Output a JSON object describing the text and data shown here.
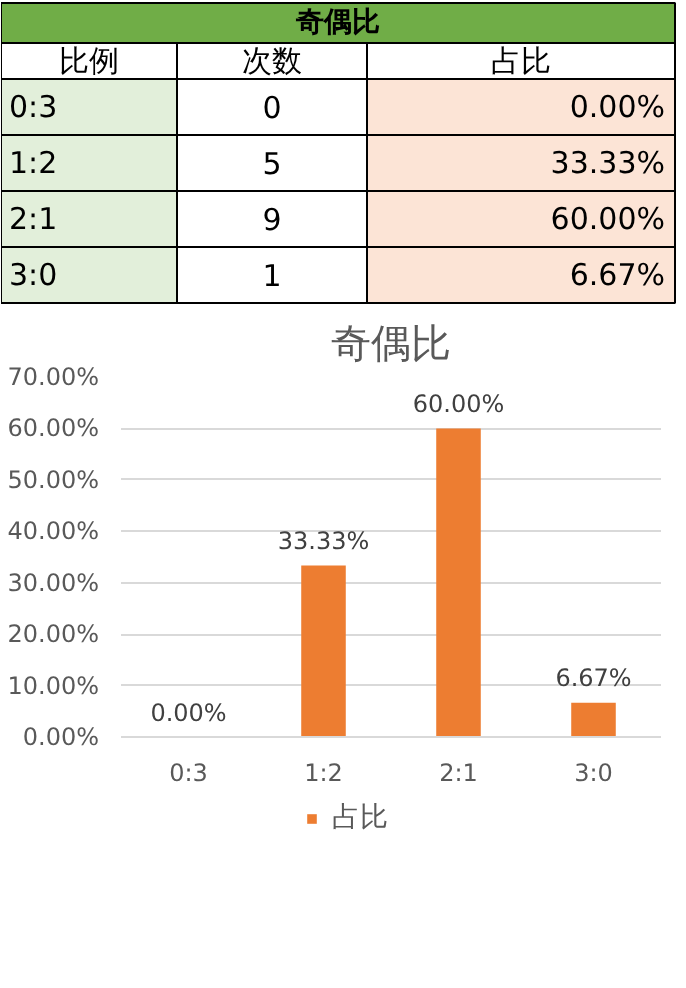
{
  "chart_data": [
    {
      "type": "other",
      "title": "奇偶比",
      "ylabel": "比例",
      "categories": [
        "次数",
        "占比"
      ],
      "y_categories": [
        "0:3",
        "1:2",
        "2:1",
        "3:0"
      ],
      "cell_labels": [
        [
          "0",
          "0.00%"
        ],
        [
          "5",
          "33.33%"
        ],
        [
          "9",
          "60.00%"
        ],
        [
          "1",
          "6.67%"
        ]
      ]
    },
    {
      "type": "bar",
      "title": "奇偶比",
      "categories": [
        "0:3",
        "1:2",
        "2:1",
        "3:0"
      ],
      "series": [
        {
          "name": "占比",
          "color": "#ed7d31",
          "values": [
            0.0,
            33.33,
            60.0,
            6.67
          ],
          "value_labels": [
            "0.00%",
            "33.33%",
            "60.00%",
            "6.67%"
          ]
        }
      ],
      "ylim": [
        0,
        70
      ],
      "yticks": [
        {
          "value": 0,
          "label": "0.00%"
        },
        {
          "value": 10,
          "label": "10.00%"
        },
        {
          "value": 20,
          "label": "20.00%"
        },
        {
          "value": 30,
          "label": "30.00%"
        },
        {
          "value": 40,
          "label": "40.00%"
        },
        {
          "value": 50,
          "label": "50.00%"
        },
        {
          "value": 60,
          "label": "60.00%"
        },
        {
          "value": 70,
          "label": "70.00%"
        }
      ],
      "grid": "y",
      "legend": "bottom"
    }
  ]
}
